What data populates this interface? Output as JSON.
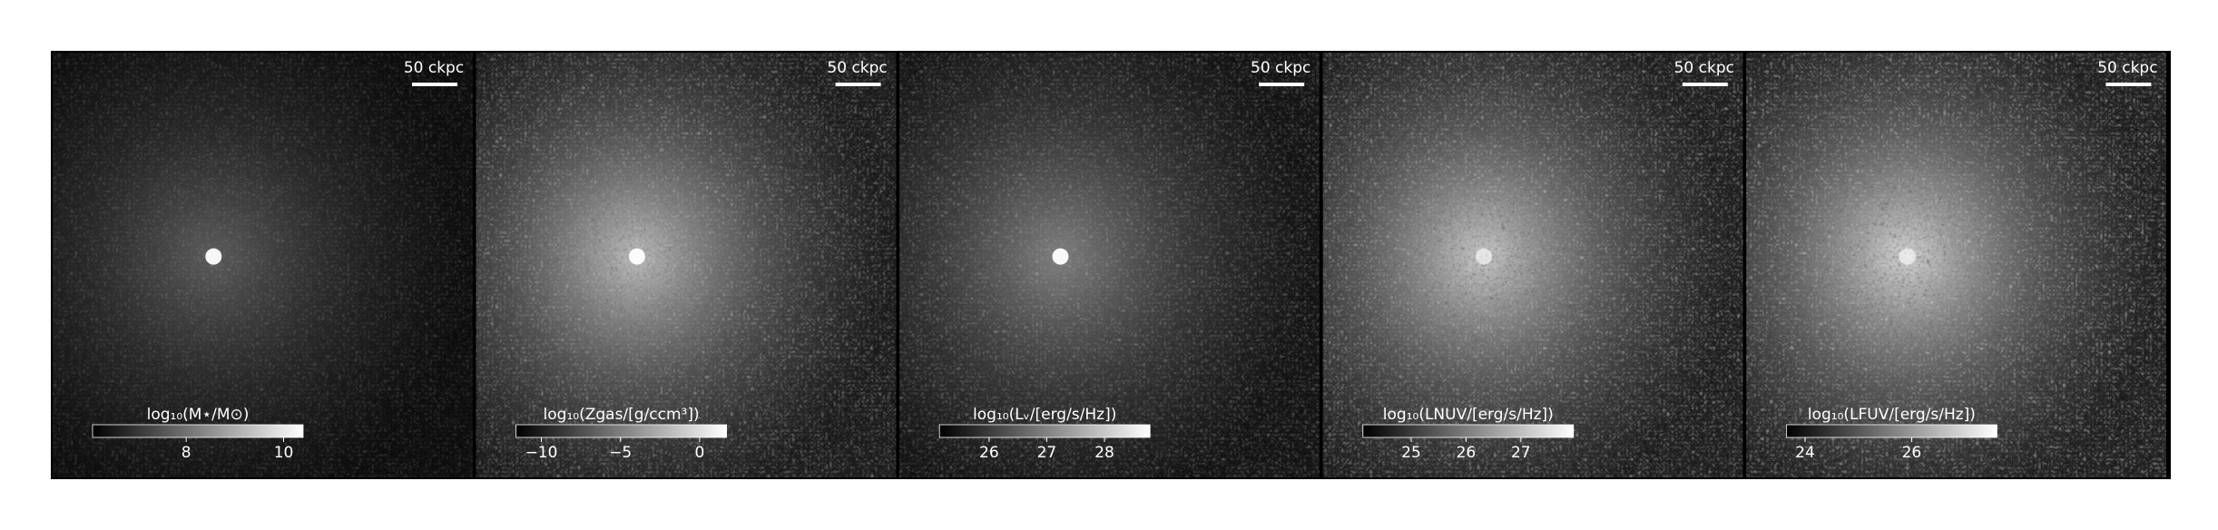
{
  "panels": [
    {
      "scale_label": "50 ckpc",
      "colorbar": {
        "label": "log₁₀(M⋆/M⊙)",
        "lim": [
          6.08,
          10.4
        ],
        "ticks": [
          8,
          10
        ]
      }
    },
    {
      "scale_label": "50 ckpc",
      "colorbar": {
        "label": "log₁₀(Zgas/[g/ccm³])",
        "lim": [
          -11.6,
          1.7
        ],
        "ticks": [
          {
            "value": -10,
            "label": "−10"
          },
          {
            "value": -5,
            "label": "−5"
          },
          0
        ]
      }
    },
    {
      "scale_label": "50 ckpc",
      "colorbar": {
        "label": "log₁₀(Lᵥ/[erg/s/Hz])",
        "lim": [
          25.14,
          28.79
        ],
        "ticks": [
          26,
          27,
          28
        ]
      }
    },
    {
      "scale_label": "50 ckpc",
      "colorbar": {
        "label": "log₁₀(LNUV/[erg/s/Hz])",
        "lim": [
          24.12,
          27.96
        ],
        "ticks": [
          25,
          26,
          27
        ]
      }
    },
    {
      "scale_label": "50 ckpc",
      "colorbar": {
        "label": "log₁₀(LFUV/[erg/s/Hz])",
        "lim": [
          23.65,
          27.6
        ],
        "ticks": [
          24,
          26
        ]
      }
    }
  ]
}
